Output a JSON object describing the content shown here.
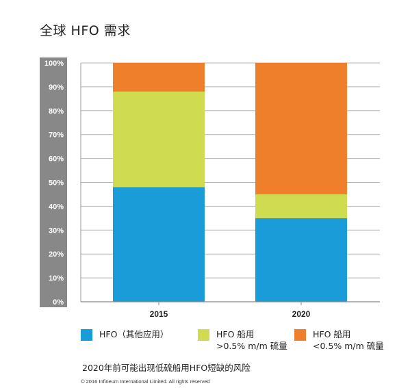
{
  "title": "全球 HFO 需求",
  "chart_data": {
    "type": "bar",
    "stacked": true,
    "categories": [
      "2015",
      "2020"
    ],
    "series": [
      {
        "name": "HFO（其他应用）",
        "color": "#1a9cd8",
        "values": [
          48,
          35
        ]
      },
      {
        "name": "HFO 船用 >0.5% m/m 硫量",
        "color": "#d0dc4f",
        "values": [
          40,
          10
        ]
      },
      {
        "name": "HFO 船用 <0.5% m/m 硫量",
        "color": "#ef7f2b",
        "values": [
          12,
          55
        ]
      }
    ],
    "y_ticks": [
      "0%",
      "10%",
      "20%",
      "30%",
      "40%",
      "50%",
      "60%",
      "70%",
      "80%",
      "90%",
      "100%"
    ],
    "ylim": [
      0,
      100
    ],
    "grid": true,
    "axis_label_bg": "#888888"
  },
  "legend": [
    {
      "lines": [
        "HFO（其他应用）"
      ],
      "color": "#1a9cd8"
    },
    {
      "lines": [
        "HFO 船用",
        ">0.5% m/m 硫量"
      ],
      "color": "#d0dc4f"
    },
    {
      "lines": [
        "HFO 船用",
        "<0.5% m/m 硫量"
      ],
      "color": "#ef7f2b"
    }
  ],
  "note": "2020年前可能出现低硫船用HFO短缺的风险",
  "copyright": "© 2016 Infineum International Limited. All rights reserved"
}
